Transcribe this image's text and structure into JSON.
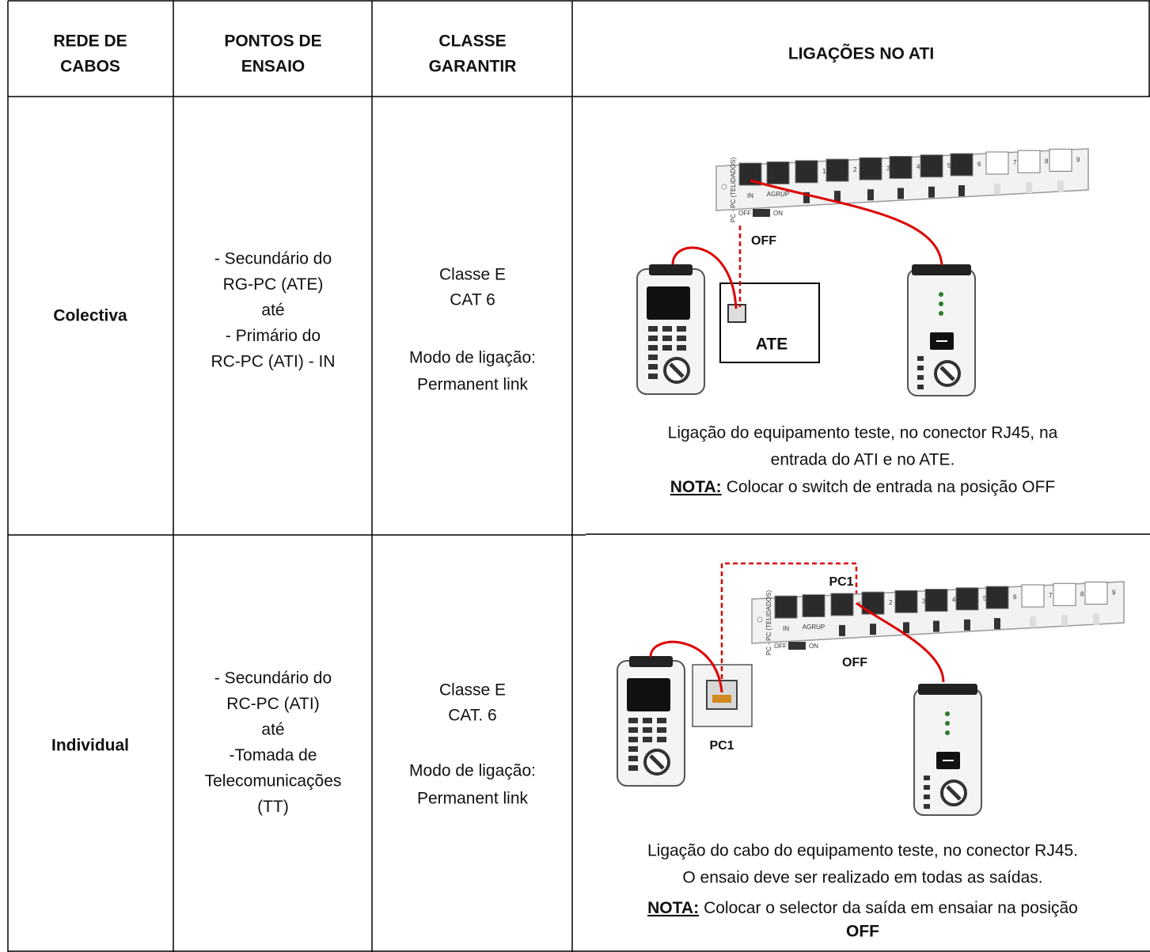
{
  "table": {
    "header": [
      [
        "REDE DE",
        "CABOS"
      ],
      [
        "PONTOS DE",
        "ENSAIO"
      ],
      [
        "CLASSE",
        "GARANTIR"
      ],
      [
        "LIGAÇÕES NO ATI"
      ]
    ],
    "rows": [
      {
        "rede": "Colectiva",
        "pontos": [
          "- Secundário do",
          "RG-PC (ATE)",
          "até",
          "- Primário do",
          "RC-PC (ATI) - IN"
        ],
        "classe": [
          "Classe E",
          "CAT 6",
          "Modo de ligação:",
          "Permanent link"
        ],
        "diagram_labels": [
          "OFF",
          "ATE"
        ],
        "caption": [
          "Ligação do equipamento teste, no conector RJ45, na",
          "entrada do ATI e no ATE."
        ],
        "nota": {
          "label": "NOTA:",
          "text": [
            "Colocar o switch de entrada na posição OFF"
          ]
        }
      },
      {
        "rede": "Individual",
        "pontos": [
          "- Secundário do",
          "RC-PC (ATI)",
          "até",
          "-Tomada de",
          "Telecomunicações",
          "(TT)"
        ],
        "classe": [
          "Classe E",
          "CAT. 6",
          "Modo de ligação:",
          "Permanent link"
        ],
        "diagram_labels": [
          "PC1",
          "OFF",
          "PC1"
        ],
        "caption": [
          "Ligação do cabo do equipamento teste, no conector RJ45.",
          "O ensaio deve ser realizado em todas as saídas."
        ],
        "nota": {
          "label": "NOTA:",
          "text": [
            "Colocar o selector da saída em ensaiar na posição",
            "OFF"
          ]
        }
      }
    ]
  },
  "panel": {
    "side": "PC - PC (TELIDADOS)",
    "in": "IN",
    "agrup": "AGRUP",
    "off": "OFF",
    "on": "ON",
    "ports": [
      "1",
      "2",
      "3",
      "4",
      "5",
      "6",
      "7",
      "8",
      "9"
    ]
  }
}
